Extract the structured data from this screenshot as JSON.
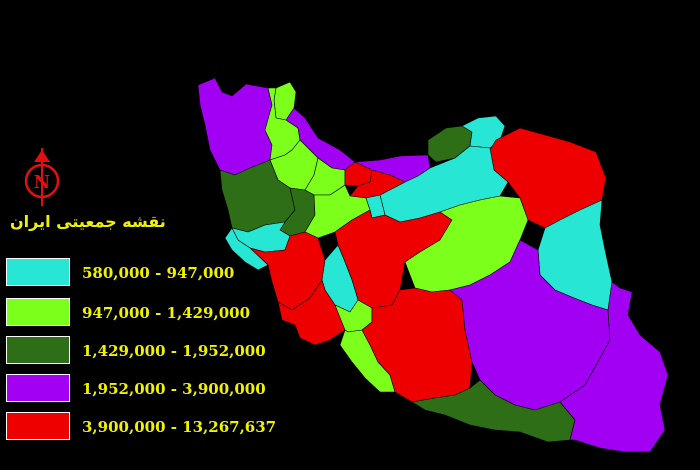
{
  "map": {
    "title": "نقشه جمعیتی ایران",
    "compass_letter": "N",
    "legend": [
      {
        "label": "580,000 - 947,000",
        "color": "#27e6d4"
      },
      {
        "label": "947,000 - 1,429,000",
        "color": "#7dff1c"
      },
      {
        "label": "1,429,000 - 1,952,000",
        "color": "#2d6e16"
      },
      {
        "label": "1,952,000 - 3,900,000",
        "color": "#a100f2"
      },
      {
        "label": "3,900,000 - 13,267,637",
        "color": "#ee0000"
      }
    ],
    "colors": {
      "background": "#000000",
      "text": "#f2f200",
      "compass": "#e01010",
      "border": "#ffffff"
    }
  }
}
